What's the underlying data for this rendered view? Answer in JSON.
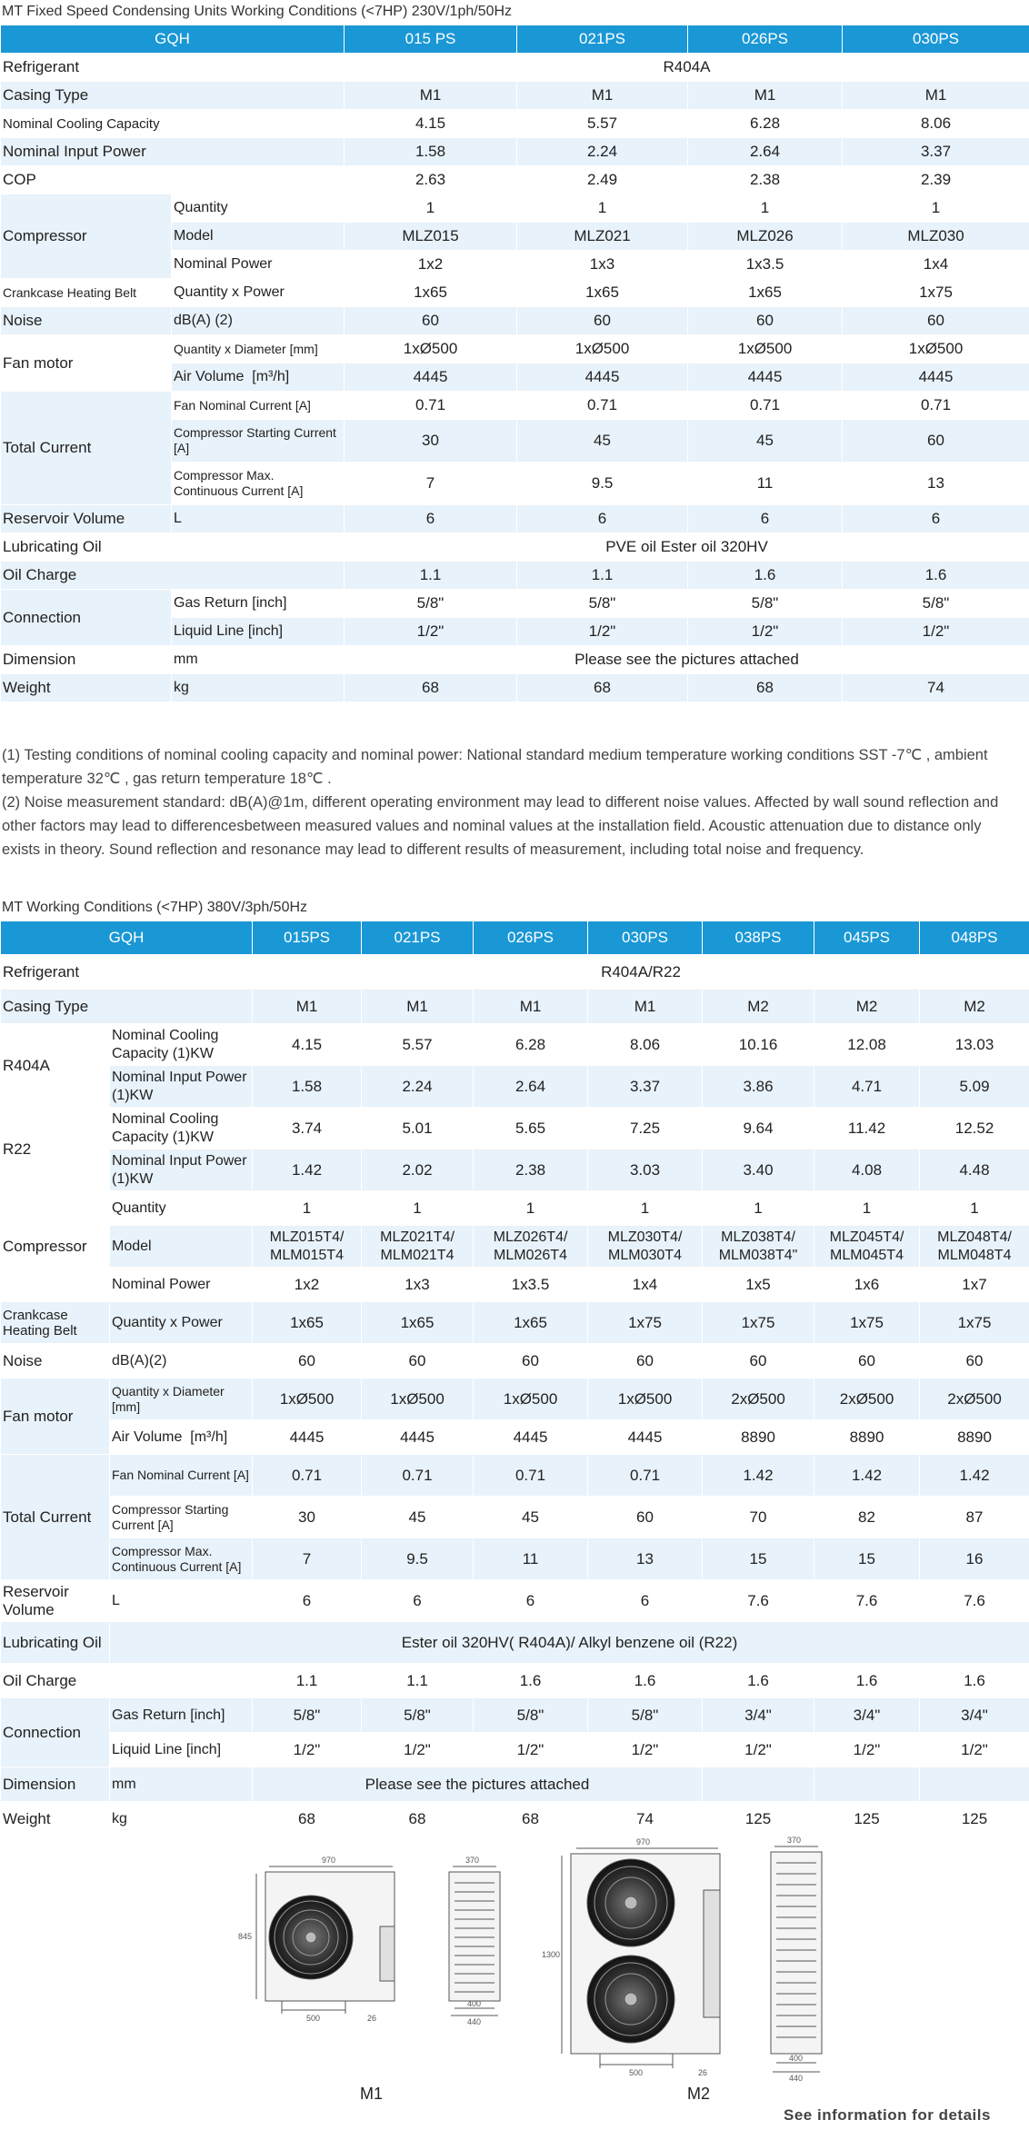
{
  "section1": {
    "title": "MT Fixed Speed Condensing Units Working Conditions (<7HP) 230V/1ph/50Hz",
    "header": [
      "GQH",
      "015 PS",
      "021PS",
      "026PS",
      "030PS"
    ],
    "refrigerant": {
      "label": "Refrigerant",
      "value": "R404A"
    },
    "casing": {
      "label": "Casing Type",
      "values": [
        "M1",
        "M1",
        "M1",
        "M1"
      ]
    },
    "cooling": {
      "label": "Nominal Cooling Capacity",
      "values": [
        "4.15",
        "5.57",
        "6.28",
        "8.06"
      ]
    },
    "input_power": {
      "label": "Nominal Input Power",
      "values": [
        "1.58",
        "2.24",
        "2.64",
        "3.37"
      ]
    },
    "cop": {
      "label": "COP",
      "values": [
        "2.63",
        "2.49",
        "2.38",
        "2.39"
      ]
    },
    "compressor": {
      "label": "Compressor",
      "quantity": {
        "label": "Quantity",
        "values": [
          "1",
          "1",
          "1",
          "1"
        ]
      },
      "model": {
        "label": "Model",
        "values": [
          "MLZ015",
          "MLZ021",
          "MLZ026",
          "MLZ030"
        ]
      },
      "power": {
        "label": "Nominal Power",
        "values": [
          "1x2",
          "1x3",
          "1x3.5",
          "1x4"
        ]
      }
    },
    "crankcase": {
      "label": "Crankcase Heating Belt",
      "sub": "Quantity x Power",
      "values": [
        "1x65",
        "1x65",
        "1x65",
        "1x75"
      ]
    },
    "noise": {
      "label": "Noise",
      "sub": "dB(A) (2)",
      "values": [
        "60",
        "60",
        "60",
        "60"
      ]
    },
    "fan": {
      "label": "Fan motor",
      "qty_diam": {
        "label": "Quantity x Diameter [mm]",
        "values": [
          "1xØ500",
          "1xØ500",
          "1xØ500",
          "1xØ500"
        ]
      },
      "air": {
        "label": "Air Volume",
        "unit": "[m³/h]",
        "values": [
          "4445",
          "4445",
          "4445",
          "4445"
        ]
      }
    },
    "current": {
      "label": "Total Current",
      "fan_current": {
        "label": "Fan Nominal Current [A]",
        "values": [
          "0.71",
          "0.71",
          "0.71",
          "0.71"
        ]
      },
      "start_current": {
        "label": "Compressor Starting Current [A]",
        "values": [
          "30",
          "45",
          "45",
          "60"
        ]
      },
      "max_current": {
        "label": "Compressor Max. Continuous Current [A]",
        "values": [
          "7",
          "9.5",
          "11",
          "13"
        ]
      }
    },
    "reservoir": {
      "label": "Reservoir Volume",
      "sub": "L",
      "values": [
        "6",
        "6",
        "6",
        "6"
      ]
    },
    "oil": {
      "label": "Lubricating Oil",
      "value": "PVE oil Ester oil 320HV"
    },
    "oil_charge": {
      "label": "Oil Charge",
      "values": [
        "1.1",
        "1.1",
        "1.6",
        "1.6"
      ]
    },
    "connection": {
      "label": "Connection",
      "gas": {
        "label": "Gas Return  [inch]",
        "values": [
          "5/8\"",
          "5/8\"",
          "5/8\"",
          "5/8\""
        ]
      },
      "liquid": {
        "label": "Liquid Line [inch]",
        "values": [
          "1/2\"",
          "1/2\"",
          "1/2\"",
          "1/2\""
        ]
      }
    },
    "dimension": {
      "label": "Dimension",
      "sub": "mm",
      "value": "Please see the pictures attached"
    },
    "weight": {
      "label": "Weight",
      "sub": "kg",
      "values": [
        "68",
        "68",
        "68",
        "74"
      ]
    }
  },
  "notes": [
    "(1) Testing conditions of nominal cooling capacity and nominal power: National standard medium temperature working conditions SST -7℃ , ambient temperature 32℃ , gas return temperature 18℃ .",
    "(2) Noise measurement standard: dB(A)@1m, different operating environment may lead to different noise values. Affected by wall sound reflection and other factors may lead to differencesbetween measured values and nominal values at the installation field. Acoustic attenuation due to distance only exists in theory. Sound reflection and resonance may lead to different results of measurement, including total noise and frequency."
  ],
  "section2": {
    "title": "MT Working Conditions (<7HP) 380V/3ph/50Hz",
    "header": [
      "GQH",
      "015PS",
      "021PS",
      "026PS",
      "030PS",
      "038PS",
      "045PS",
      "048PS"
    ],
    "refrigerant": {
      "label": "Refrigerant",
      "value": "R404A/R22"
    },
    "casing": {
      "label": "Casing Type",
      "values": [
        "M1",
        "M1",
        "M1",
        "M1",
        "M2",
        "M2",
        "M2"
      ]
    },
    "r404a": {
      "label": "R404A",
      "cooling": {
        "label": "Nominal Cooling Capacity (1)KW",
        "values": [
          "4.15",
          "5.57",
          "6.28",
          "8.06",
          "10.16",
          "12.08",
          "13.03"
        ]
      },
      "input": {
        "label": "Nominal Input Power (1)KW",
        "values": [
          "1.58",
          "2.24",
          "2.64",
          "3.37",
          "3.86",
          "4.71",
          "5.09"
        ]
      }
    },
    "r22": {
      "label": "R22",
      "cooling": {
        "label": "Nominal Cooling Capacity (1)KW",
        "values": [
          "3.74",
          "5.01",
          "5.65",
          "7.25",
          "9.64",
          "11.42",
          "12.52"
        ]
      },
      "input": {
        "label": "Nominal Input Power (1)KW",
        "values": [
          "1.42",
          "2.02",
          "2.38",
          "3.03",
          "3.40",
          "4.08",
          "4.48"
        ]
      }
    },
    "compressor": {
      "label": "Compressor",
      "quantity": {
        "label": "Quantity",
        "values": [
          "1",
          "1",
          "1",
          "1",
          "1",
          "1",
          "1"
        ]
      },
      "model": {
        "label": "Model",
        "values": [
          "MLZ015T4/ MLM015T4",
          "MLZ021T4/ MLM021T4",
          "MLZ026T4/ MLM026T4",
          "MLZ030T4/ MLM030T4",
          "MLZ038T4/ MLM038T4\"",
          "MLZ045T4/ MLM045T4",
          "MLZ048T4/ MLM048T4"
        ]
      },
      "power": {
        "label": "Nominal Power",
        "values": [
          "1x2",
          "1x3",
          "1x3.5",
          "1x4",
          "1x5",
          "1x6",
          "1x7"
        ]
      }
    },
    "crankcase": {
      "label": "Crankcase Heating Belt",
      "sub": "Quantity x Power",
      "values": [
        "1x65",
        "1x65",
        "1x65",
        "1x75",
        "1x75",
        "1x75",
        "1x75"
      ]
    },
    "noise": {
      "label": "Noise",
      "sub": "dB(A)(2)",
      "values": [
        "60",
        "60",
        "60",
        "60",
        "60",
        "60",
        "60"
      ]
    },
    "fan": {
      "label": "Fan motor",
      "qty_diam": {
        "label": "Quantity x Diameter [mm]",
        "values": [
          "1xØ500",
          "1xØ500",
          "1xØ500",
          "1xØ500",
          "2xØ500",
          "2xØ500",
          "2xØ500"
        ]
      },
      "air": {
        "label": "Air Volume",
        "unit": "[m³/h]",
        "values": [
          "4445",
          "4445",
          "4445",
          "4445",
          "8890",
          "8890",
          "8890"
        ]
      }
    },
    "current": {
      "label": "Total Current",
      "fan_current": {
        "label": "Fan Nominal Current [A]",
        "values": [
          "0.71",
          "0.71",
          "0.71",
          "0.71",
          "1.42",
          "1.42",
          "1.42"
        ]
      },
      "start_current": {
        "label": "Compressor Starting Current [A]",
        "values": [
          "30",
          "45",
          "45",
          "60",
          "70",
          "82",
          "87"
        ]
      },
      "max_current": {
        "label": "Compressor Max. Continuous Current [A]",
        "values": [
          "7",
          "9.5",
          "11",
          "13",
          "15",
          "15",
          "16"
        ]
      }
    },
    "reservoir": {
      "label": "Reservoir Volume",
      "sub": "L",
      "values": [
        "6",
        "6",
        "6",
        "6",
        "7.6",
        "7.6",
        "7.6"
      ]
    },
    "oil": {
      "label": "Lubricating Oil",
      "value": "Ester oil 320HV( R404A)/ Alkyl benzene oil (R22)"
    },
    "oil_charge": {
      "label": "Oil Charge",
      "values": [
        "1.1",
        "1.1",
        "1.6",
        "1.6",
        "1.6",
        "1.6",
        "1.6"
      ]
    },
    "connection": {
      "label": "Connection",
      "gas": {
        "label": "Gas Return  [inch]",
        "values": [
          "5/8\"",
          "5/8\"",
          "5/8\"",
          "5/8\"",
          "3/4\"",
          "3/4\"",
          "3/4\""
        ]
      },
      "liquid": {
        "label": "Liquid Line [inch]",
        "values": [
          "1/2\"",
          "1/2\"",
          "1/2\"",
          "1/2\"",
          "1/2\"",
          "1/2\"",
          "1/2\""
        ]
      }
    },
    "dimension": {
      "label": "Dimension",
      "sub": "mm",
      "value": "Please see the pictures attached"
    },
    "weight": {
      "label": "Weight",
      "sub": "kg",
      "values": [
        "68",
        "68",
        "68",
        "74",
        "125",
        "125",
        "125"
      ]
    }
  },
  "drawings": {
    "m1": {
      "label": "M1",
      "front": {
        "width": "970",
        "height": "845",
        "foot": "500",
        "offset": "26"
      },
      "side": {
        "depth": "370",
        "foot1": "400",
        "foot2": "440"
      }
    },
    "m2": {
      "label": "M2",
      "front": {
        "width": "970",
        "height": "1300",
        "foot": "500",
        "offset": "26"
      },
      "side": {
        "depth": "370",
        "foot1": "400",
        "foot2": "440"
      }
    },
    "see_details": "See information for details"
  }
}
